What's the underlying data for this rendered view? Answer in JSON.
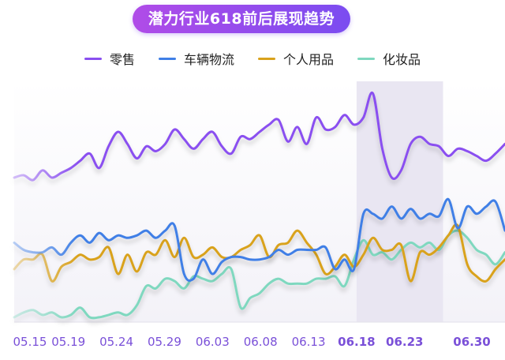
{
  "chart_data": {
    "type": "line",
    "title": "潜力行业618前后展现趋势",
    "xlabel": "",
    "ylabel": "",
    "x_ticks": [
      {
        "label": "05.15",
        "day": 0,
        "bold": false
      },
      {
        "label": "05.19",
        "day": 4,
        "bold": false
      },
      {
        "label": "05.24",
        "day": 9,
        "bold": false
      },
      {
        "label": "05.29",
        "day": 14,
        "bold": false
      },
      {
        "label": "06.03",
        "day": 19,
        "bold": false
      },
      {
        "label": "06.08",
        "day": 24,
        "bold": false
      },
      {
        "label": "06.13",
        "day": 29,
        "bold": false
      },
      {
        "label": "06.18",
        "day": 34,
        "bold": true
      },
      {
        "label": "06.23",
        "day": 39,
        "bold": true
      },
      {
        "label": "06.30",
        "day": 46,
        "bold": true
      }
    ],
    "highlight_range": [
      34,
      43
    ],
    "ylim": [
      0,
      100
    ],
    "grid": false,
    "legend_position": "top",
    "series": [
      {
        "name": "零售",
        "color": "#8a4ff0",
        "values": [
          60,
          61,
          59,
          63,
          60,
          62,
          64,
          67,
          70,
          64,
          73,
          79,
          74,
          68,
          73,
          71,
          74,
          80,
          76,
          72,
          76,
          79,
          73,
          70,
          77,
          76,
          79,
          82,
          84,
          75,
          81,
          74,
          85,
          80,
          81,
          86,
          82,
          85,
          95,
          72,
          60,
          63,
          74,
          77,
          74,
          73,
          69,
          72,
          71,
          69,
          67,
          70,
          74
        ]
      },
      {
        "name": "车辆物流",
        "color": "#3f7fe6",
        "values": [
          33,
          30,
          29,
          29,
          31,
          28,
          33,
          36,
          33,
          37,
          34,
          36,
          35,
          36,
          38,
          35,
          38,
          40,
          20,
          18,
          26,
          20,
          25,
          27,
          27,
          26,
          26,
          27,
          30,
          28,
          30,
          30,
          30,
          31,
          22,
          26,
          22,
          45,
          45,
          43,
          48,
          43,
          47,
          43,
          45,
          44,
          51,
          39,
          48,
          45,
          48,
          50,
          38
        ]
      },
      {
        "name": "个人用品",
        "color": "#d9a21c",
        "values": [
          22,
          26,
          26,
          28,
          17,
          23,
          25,
          28,
          26,
          27,
          31,
          20,
          28,
          21,
          29,
          28,
          34,
          27,
          35,
          27,
          28,
          31,
          27,
          27,
          30,
          32,
          36,
          27,
          32,
          33,
          38,
          33,
          28,
          20,
          23,
          28,
          23,
          28,
          35,
          30,
          30,
          32,
          17,
          29,
          28,
          31,
          36,
          40,
          24,
          19,
          17,
          22,
          26
        ]
      },
      {
        "name": "化妆品",
        "color": "#7fd8bf",
        "values": [
          2,
          4,
          5,
          3,
          4,
          2,
          3,
          6,
          2,
          2,
          3,
          4,
          3,
          7,
          15,
          14,
          18,
          17,
          14,
          19,
          18,
          17,
          20,
          22,
          6,
          10,
          12,
          16,
          18,
          16,
          16,
          16,
          18,
          18,
          19,
          15,
          26,
          34,
          28,
          29,
          26,
          30,
          33,
          31,
          33,
          30,
          36,
          38,
          35,
          30,
          28,
          24,
          29
        ]
      }
    ]
  }
}
